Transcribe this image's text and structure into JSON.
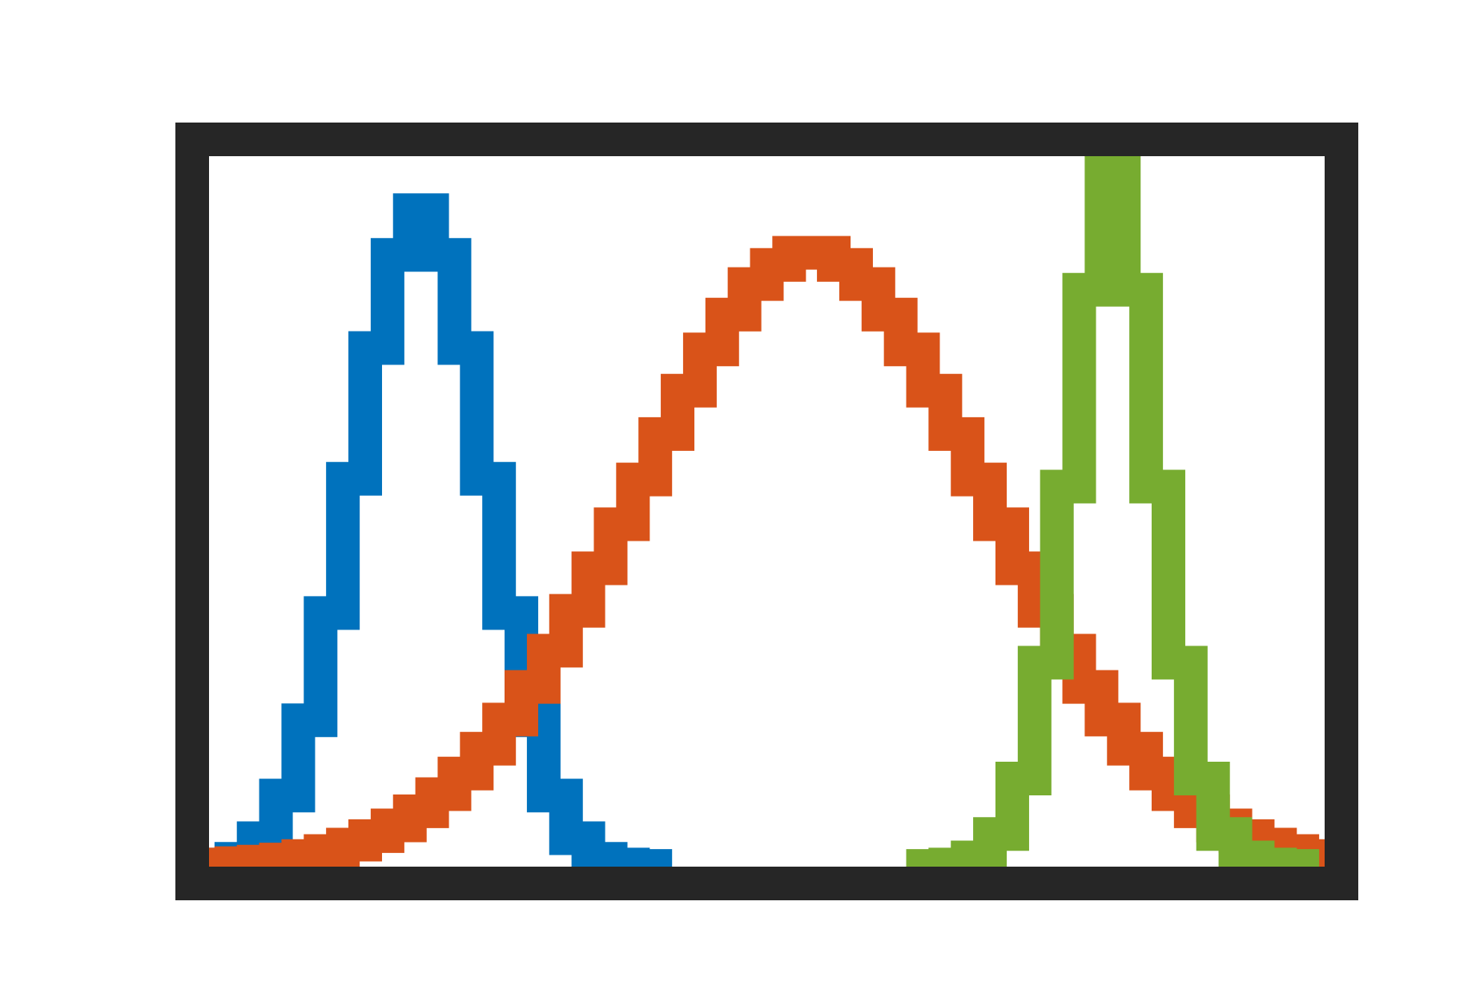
{
  "chart_data": {
    "type": "histogram",
    "title": "",
    "xlabel": "",
    "ylabel": "",
    "histtype": "step",
    "x_range": [
      0,
      1
    ],
    "ylim": [
      0,
      1
    ],
    "bin_width": 0.02,
    "grid": false,
    "legend": "none",
    "axis_color": "#262626",
    "series": [
      {
        "color": "#0072bd",
        "bin_start": 0.0,
        "values": [
          0.003,
          0.011,
          0.04,
          0.1,
          0.206,
          0.357,
          0.546,
          0.73,
          0.861,
          0.924,
          0.861,
          0.73,
          0.546,
          0.357,
          0.206,
          0.1,
          0.04,
          0.011,
          0.003,
          0.001
        ]
      },
      {
        "color": "#d95319",
        "bin_start": 0.0,
        "values": [
          0.003,
          0.005,
          0.007,
          0.01,
          0.015,
          0.022,
          0.031,
          0.043,
          0.058,
          0.078,
          0.102,
          0.131,
          0.166,
          0.207,
          0.253,
          0.304,
          0.36,
          0.42,
          0.482,
          0.545,
          0.609,
          0.67,
          0.728,
          0.777,
          0.82,
          0.847,
          0.864,
          0.864,
          0.847,
          0.82,
          0.777,
          0.728,
          0.67,
          0.609,
          0.545,
          0.482,
          0.42,
          0.36,
          0.304,
          0.253,
          0.207,
          0.166,
          0.131,
          0.102,
          0.078,
          0.058,
          0.043,
          0.031,
          0.022,
          0.015
        ]
      },
      {
        "color": "#77ac30",
        "bin_start": 0.64,
        "values": [
          0.001,
          0.003,
          0.013,
          0.046,
          0.124,
          0.287,
          0.535,
          0.812,
          1.0,
          0.812,
          0.535,
          0.287,
          0.124,
          0.046,
          0.013,
          0.003,
          0.001
        ]
      }
    ]
  }
}
